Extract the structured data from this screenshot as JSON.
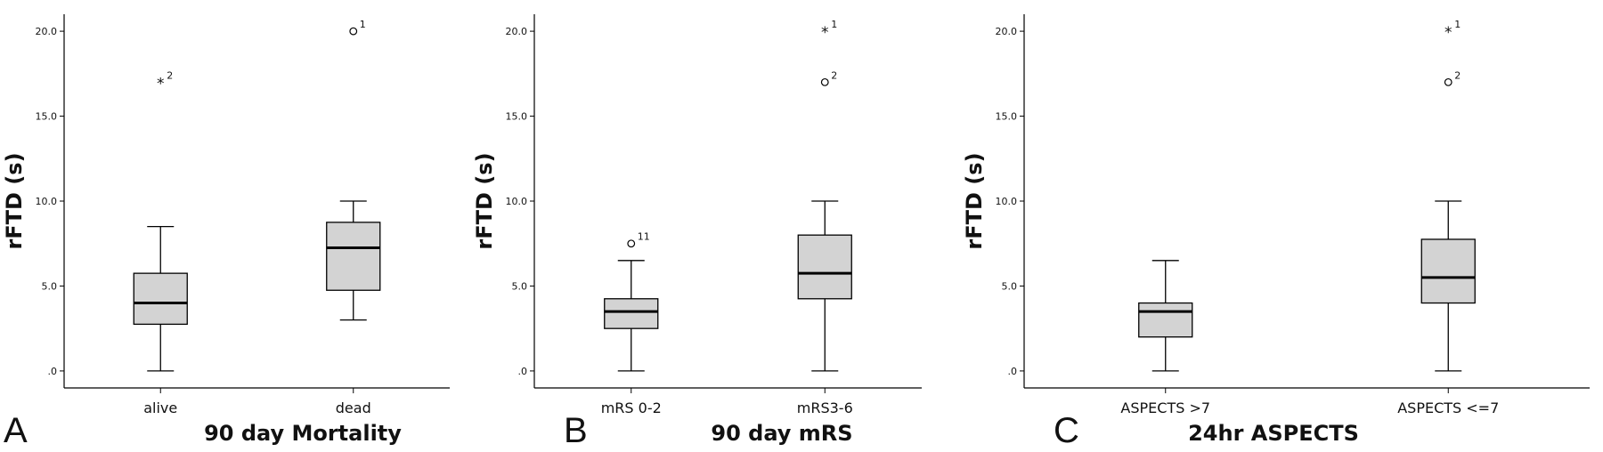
{
  "figure": {
    "background": "#ffffff",
    "box_fill": "#d3d3d3",
    "line_color": "#000000"
  },
  "chart_data": [
    {
      "type": "box",
      "panel": "A",
      "title": "",
      "xlabel": "90 day Mortality",
      "ylabel": "rFTD (s)",
      "ylim": [
        -1.0,
        21.0
      ],
      "yticks": [
        ".0",
        "5.0",
        "10.0",
        "15.0",
        "20.0"
      ],
      "ytick_values": [
        0,
        5,
        10,
        15,
        20
      ],
      "categories": [
        "alive",
        "dead"
      ],
      "boxes": [
        {
          "category": "alive",
          "whisker_low": 0,
          "q1": 2.75,
          "median": 4.0,
          "q3": 5.75,
          "whisker_high": 8.5,
          "outliers": [
            {
              "value": 17.0,
              "label": "2",
              "marker": "star"
            }
          ]
        },
        {
          "category": "dead",
          "whisker_low": 3.0,
          "q1": 4.75,
          "median": 7.25,
          "q3": 8.75,
          "whisker_high": 10.0,
          "outliers": [
            {
              "value": 20.0,
              "label": "1",
              "marker": "circle"
            }
          ]
        }
      ]
    },
    {
      "type": "box",
      "panel": "B",
      "title": "",
      "xlabel": "90 day mRS",
      "ylabel": "rFTD (s)",
      "ylim": [
        -1.0,
        21.0
      ],
      "yticks": [
        ".0",
        "5.0",
        "10.0",
        "15.0",
        "20.0"
      ],
      "ytick_values": [
        0,
        5,
        10,
        15,
        20
      ],
      "categories": [
        "mRS 0-2",
        "mRS3-6"
      ],
      "boxes": [
        {
          "category": "mRS 0-2",
          "whisker_low": 0,
          "q1": 2.5,
          "median": 3.5,
          "q3": 4.25,
          "whisker_high": 6.5,
          "outliers": [
            {
              "value": 7.5,
              "label": "11",
              "marker": "circle"
            }
          ]
        },
        {
          "category": "mRS3-6",
          "whisker_low": 0,
          "q1": 4.25,
          "median": 5.75,
          "q3": 8.0,
          "whisker_high": 10.0,
          "outliers": [
            {
              "value": 20.0,
              "label": "1",
              "marker": "star"
            },
            {
              "value": 17.0,
              "label": "2",
              "marker": "circle"
            }
          ]
        }
      ]
    },
    {
      "type": "box",
      "panel": "C",
      "title": "",
      "xlabel": "24hr ASPECTS",
      "ylabel": "rFTD (s)",
      "ylim": [
        -1.0,
        21.0
      ],
      "yticks": [
        ".0",
        "5.0",
        "10.0",
        "15.0",
        "20.0"
      ],
      "ytick_values": [
        0,
        5,
        10,
        15,
        20
      ],
      "categories": [
        "ASPECTS >7",
        "ASPECTS <=7"
      ],
      "boxes": [
        {
          "category": "ASPECTS >7",
          "whisker_low": 0,
          "q1": 2.0,
          "median": 3.5,
          "q3": 4.0,
          "whisker_high": 6.5,
          "outliers": []
        },
        {
          "category": "ASPECTS <=7",
          "whisker_low": 0,
          "q1": 4.0,
          "median": 5.5,
          "q3": 7.75,
          "whisker_high": 10.0,
          "outliers": [
            {
              "value": 20.0,
              "label": "1",
              "marker": "star"
            },
            {
              "value": 17.0,
              "label": "2",
              "marker": "circle"
            }
          ]
        }
      ]
    }
  ]
}
